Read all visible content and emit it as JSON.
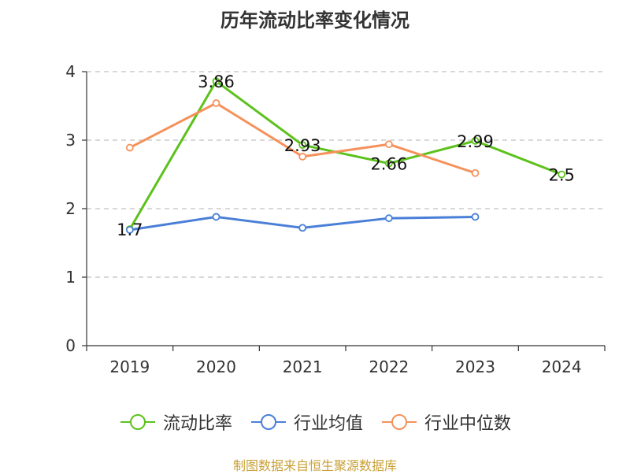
{
  "chart_data": {
    "type": "line",
    "title": "历年流动比率变化情况",
    "categories": [
      "2019",
      "2020",
      "2021",
      "2022",
      "2023",
      "2024"
    ],
    "ylim": [
      0,
      4
    ],
    "yticks": [
      0,
      1,
      2,
      3,
      4
    ],
    "grid": true,
    "legend_position": "bottom",
    "series": [
      {
        "name": "流动比率",
        "color": "#5cc21b",
        "values": [
          1.7,
          3.86,
          2.93,
          2.66,
          2.99,
          2.5
        ],
        "labels": [
          "1.7",
          "3.86",
          "2.93",
          "2.66",
          "2.99",
          "2.5"
        ]
      },
      {
        "name": "行业均值",
        "color": "#4a7fd8",
        "values": [
          1.69,
          1.88,
          1.72,
          1.86,
          1.88,
          null
        ]
      },
      {
        "name": "行业中位数",
        "color": "#f5915a",
        "values": [
          2.89,
          3.54,
          2.76,
          2.94,
          2.52,
          null
        ]
      }
    ]
  },
  "source": "制图数据来自恒生聚源数据库"
}
